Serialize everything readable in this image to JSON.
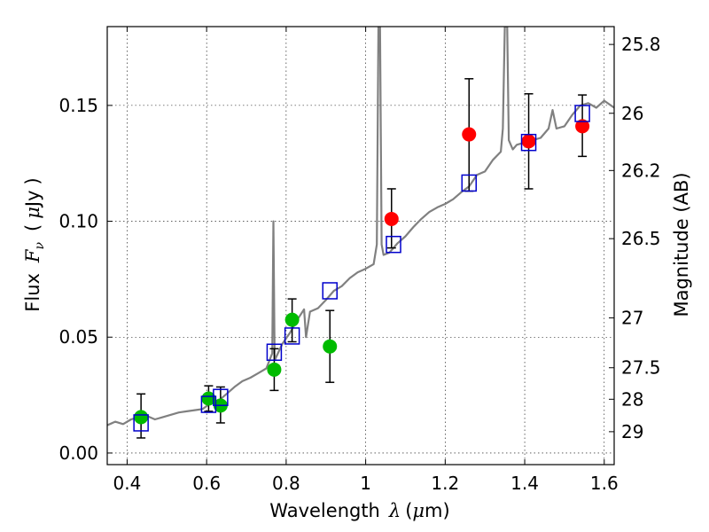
{
  "chart_data": {
    "type": "scatter",
    "xlabel_text": "Wavelength",
    "xlabel_symbol": "λ",
    "xlabel_unit_open": "(",
    "xlabel_unit_mu": "μ",
    "xlabel_unit_rest": "m)",
    "ylabel_text": "Flux",
    "ylabel_symbol_F": "F",
    "ylabel_symbol_nu": "ν",
    "ylabel_unit_open": "(",
    "ylabel_unit_mu": "μ",
    "ylabel_unit_rest": "Jy",
    "ylabel_unit_close": ")",
    "right_ylabel": "Magnitude (AB)",
    "xlim": [
      0.35,
      1.625
    ],
    "ylim": [
      -0.005,
      0.184
    ],
    "x_ticks": [
      {
        "value": 0.4,
        "label": "0.4"
      },
      {
        "value": 0.6,
        "label": "0.6"
      },
      {
        "value": 0.8,
        "label": "0.8"
      },
      {
        "value": 1.0,
        "label": "1"
      },
      {
        "value": 1.2,
        "label": "1.2"
      },
      {
        "value": 1.4,
        "label": "1.4"
      },
      {
        "value": 1.6,
        "label": "1.6"
      }
    ],
    "y_ticks": [
      {
        "value": 0.0,
        "label": "0.00"
      },
      {
        "value": 0.05,
        "label": "0.05"
      },
      {
        "value": 0.1,
        "label": "0.10"
      },
      {
        "value": 0.15,
        "label": "0.15"
      }
    ],
    "right_ticks": [
      {
        "label": "25.8",
        "flux": 0.1763
      },
      {
        "label": "26",
        "flux": 0.1466
      },
      {
        "label": "26.2",
        "flux": 0.1219
      },
      {
        "label": "26.5",
        "flux": 0.0925
      },
      {
        "label": "27",
        "flux": 0.0583
      },
      {
        "label": "27.5",
        "flux": 0.0368
      },
      {
        "label": "28",
        "flux": 0.0232
      },
      {
        "label": "29",
        "flux": 0.0092
      }
    ],
    "grid": true,
    "colors": {
      "model": "#808080",
      "synthetic": "#0000cc",
      "optical": "#00bb00",
      "nir": "#ff0000",
      "errorbar": "#000000"
    },
    "model_spectrum": [
      [
        0.35,
        0.012
      ],
      [
        0.37,
        0.0135
      ],
      [
        0.39,
        0.0125
      ],
      [
        0.41,
        0.0145
      ],
      [
        0.43,
        0.0155
      ],
      [
        0.45,
        0.016
      ],
      [
        0.47,
        0.0145
      ],
      [
        0.49,
        0.0155
      ],
      [
        0.51,
        0.0165
      ],
      [
        0.53,
        0.0175
      ],
      [
        0.55,
        0.018
      ],
      [
        0.57,
        0.0185
      ],
      [
        0.59,
        0.019
      ],
      [
        0.61,
        0.0215
      ],
      [
        0.63,
        0.0225
      ],
      [
        0.65,
        0.0255
      ],
      [
        0.67,
        0.0285
      ],
      [
        0.69,
        0.031
      ],
      [
        0.71,
        0.0325
      ],
      [
        0.73,
        0.0345
      ],
      [
        0.75,
        0.0365
      ],
      [
        0.765,
        0.043
      ],
      [
        0.768,
        0.1
      ],
      [
        0.771,
        0.04
      ],
      [
        0.79,
        0.047
      ],
      [
        0.81,
        0.052
      ],
      [
        0.83,
        0.058
      ],
      [
        0.845,
        0.062
      ],
      [
        0.85,
        0.05
      ],
      [
        0.86,
        0.061
      ],
      [
        0.88,
        0.0625
      ],
      [
        0.9,
        0.066
      ],
      [
        0.92,
        0.07
      ],
      [
        0.94,
        0.072
      ],
      [
        0.96,
        0.0755
      ],
      [
        0.98,
        0.078
      ],
      [
        1.0,
        0.0795
      ],
      [
        1.02,
        0.0815
      ],
      [
        1.028,
        0.09
      ],
      [
        1.032,
        0.184
      ],
      [
        1.036,
        0.184
      ],
      [
        1.04,
        0.09
      ],
      [
        1.045,
        0.0855
      ],
      [
        1.06,
        0.0865
      ],
      [
        1.08,
        0.0905
      ],
      [
        1.1,
        0.0935
      ],
      [
        1.12,
        0.0975
      ],
      [
        1.14,
        0.101
      ],
      [
        1.16,
        0.104
      ],
      [
        1.18,
        0.106
      ],
      [
        1.2,
        0.1075
      ],
      [
        1.22,
        0.1095
      ],
      [
        1.24,
        0.1125
      ],
      [
        1.26,
        0.115
      ],
      [
        1.28,
        0.12
      ],
      [
        1.3,
        0.1215
      ],
      [
        1.32,
        0.1265
      ],
      [
        1.34,
        0.13
      ],
      [
        1.345,
        0.14
      ],
      [
        1.35,
        0.184
      ],
      [
        1.356,
        0.184
      ],
      [
        1.36,
        0.135
      ],
      [
        1.37,
        0.131
      ],
      [
        1.38,
        0.133
      ],
      [
        1.4,
        0.134
      ],
      [
        1.42,
        0.135
      ],
      [
        1.44,
        0.136
      ],
      [
        1.46,
        0.14
      ],
      [
        1.47,
        0.148
      ],
      [
        1.48,
        0.14
      ],
      [
        1.5,
        0.141
      ],
      [
        1.52,
        0.146
      ],
      [
        1.54,
        0.15
      ],
      [
        1.56,
        0.151
      ],
      [
        1.58,
        0.149
      ],
      [
        1.6,
        0.152
      ],
      [
        1.625,
        0.149
      ]
    ],
    "synthetic_points": [
      {
        "x": 0.435,
        "y": 0.013
      },
      {
        "x": 0.605,
        "y": 0.021
      },
      {
        "x": 0.635,
        "y": 0.024
      },
      {
        "x": 0.77,
        "y": 0.0435
      },
      {
        "x": 0.815,
        "y": 0.0505
      },
      {
        "x": 0.91,
        "y": 0.07
      },
      {
        "x": 1.07,
        "y": 0.09
      },
      {
        "x": 1.26,
        "y": 0.1165
      },
      {
        "x": 1.41,
        "y": 0.134
      },
      {
        "x": 1.545,
        "y": 0.1465
      }
    ],
    "observed_points": [
      {
        "x": 0.435,
        "y": 0.0155,
        "err_lo": 0.0065,
        "err_hi": 0.0255,
        "band": "optical"
      },
      {
        "x": 0.605,
        "y": 0.0235,
        "err_lo": 0.018,
        "err_hi": 0.029,
        "band": "optical"
      },
      {
        "x": 0.635,
        "y": 0.0205,
        "err_lo": 0.013,
        "err_hi": 0.0285,
        "band": "optical"
      },
      {
        "x": 0.77,
        "y": 0.036,
        "err_lo": 0.027,
        "err_hi": 0.045,
        "band": "optical"
      },
      {
        "x": 0.815,
        "y": 0.0575,
        "err_lo": 0.048,
        "err_hi": 0.0665,
        "band": "optical"
      },
      {
        "x": 0.91,
        "y": 0.046,
        "err_lo": 0.0305,
        "err_hi": 0.0615,
        "band": "optical"
      },
      {
        "x": 1.065,
        "y": 0.101,
        "err_lo": 0.0885,
        "err_hi": 0.114,
        "band": "nir"
      },
      {
        "x": 1.26,
        "y": 0.1375,
        "err_lo": 0.113,
        "err_hi": 0.1615,
        "band": "nir"
      },
      {
        "x": 1.41,
        "y": 0.1345,
        "err_lo": 0.114,
        "err_hi": 0.155,
        "band": "nir"
      },
      {
        "x": 1.545,
        "y": 0.141,
        "err_lo": 0.128,
        "err_hi": 0.1545,
        "band": "nir"
      }
    ]
  }
}
